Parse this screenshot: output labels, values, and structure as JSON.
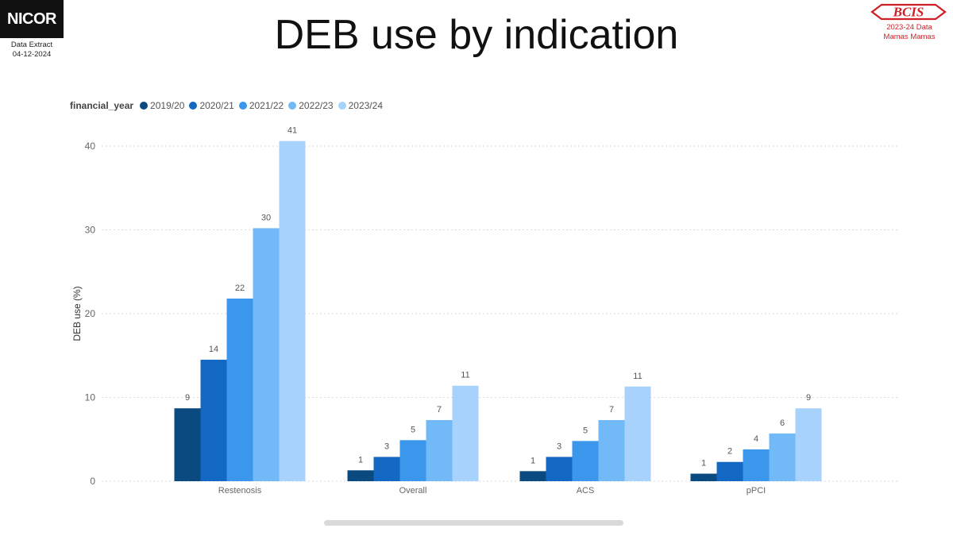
{
  "header": {
    "logo_text": "NICOR",
    "extract_label": "Data Extract",
    "extract_date": "04-12-2024",
    "title": "DEB use by indication",
    "bcis_logo_text": "BCIS",
    "bcis_line1": "2023-24 Data",
    "bcis_line2": "Mamas Mamas"
  },
  "legend": {
    "title": "financial_year"
  },
  "colors": {
    "bcis_red": "#d01f26",
    "grid": "#d9d9d9",
    "axis_text": "#666666",
    "label_text": "#555555"
  },
  "chart_data": {
    "type": "bar",
    "title": "",
    "xlabel": "",
    "ylabel": "DEB use (%)",
    "ylim": [
      0,
      41
    ],
    "yticks": [
      0,
      10,
      20,
      30,
      40
    ],
    "grid": true,
    "legend_position": "top-left",
    "categories": [
      "Restenosis",
      "Overall",
      "ACS",
      "pPCI"
    ],
    "series": [
      {
        "name": "2019/20",
        "color": "#0b4a80",
        "values": [
          8.7,
          1.3,
          1.2,
          0.9
        ],
        "labels": [
          "9",
          "1",
          "1",
          "1"
        ]
      },
      {
        "name": "2020/21",
        "color": "#1268c2",
        "values": [
          14.5,
          2.9,
          2.9,
          2.3
        ],
        "labels": [
          "14",
          "3",
          "3",
          "2"
        ]
      },
      {
        "name": "2021/22",
        "color": "#3b97ec",
        "values": [
          21.8,
          4.9,
          4.8,
          3.8
        ],
        "labels": [
          "22",
          "5",
          "5",
          "4"
        ]
      },
      {
        "name": "2022/23",
        "color": "#72b9f7",
        "values": [
          30.2,
          7.3,
          7.3,
          5.7
        ],
        "labels": [
          "30",
          "7",
          "7",
          "6"
        ]
      },
      {
        "name": "2023/24",
        "color": "#a7d2fb",
        "values": [
          40.6,
          11.4,
          11.3,
          8.7
        ],
        "labels": [
          "41",
          "11",
          "11",
          "9"
        ]
      }
    ]
  }
}
